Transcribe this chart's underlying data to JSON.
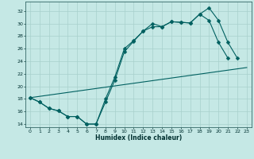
{
  "xlabel": "Humidex (Indice chaleur)",
  "bg_color": "#c5e8e5",
  "line_color": "#006060",
  "grid_color": "#a8d0cc",
  "xlim": [
    -0.5,
    23.5
  ],
  "ylim": [
    13.5,
    33.5
  ],
  "xticks": [
    0,
    1,
    2,
    3,
    4,
    5,
    6,
    7,
    8,
    9,
    10,
    11,
    12,
    13,
    14,
    15,
    16,
    17,
    18,
    19,
    20,
    21,
    22,
    23
  ],
  "yticks": [
    14,
    16,
    18,
    20,
    22,
    24,
    26,
    28,
    30,
    32
  ],
  "line1_x": [
    0,
    1,
    2,
    3,
    4,
    5,
    6,
    7,
    8,
    9,
    10,
    11,
    12,
    13,
    14,
    15,
    16,
    17,
    18,
    19,
    20,
    21
  ],
  "line1_y": [
    18.2,
    17.5,
    16.5,
    16.1,
    15.2,
    15.2,
    14.0,
    14.0,
    17.5,
    21.0,
    25.5,
    27.2,
    28.8,
    30.0,
    29.5,
    30.3,
    30.2,
    30.1,
    31.5,
    30.5,
    27.0,
    24.5
  ],
  "line2_x": [
    0,
    1,
    2,
    3,
    4,
    5,
    6,
    7,
    8,
    9,
    10,
    11,
    12,
    13,
    14,
    15,
    16,
    17,
    18,
    19,
    20,
    21,
    22
  ],
  "line2_y": [
    18.2,
    17.5,
    16.5,
    16.1,
    15.2,
    15.2,
    14.0,
    14.0,
    18.0,
    21.5,
    26.0,
    27.3,
    28.8,
    29.5,
    29.5,
    30.3,
    30.2,
    30.1,
    31.5,
    32.5,
    30.5,
    27.0,
    24.5
  ],
  "line3_x": [
    0,
    23
  ],
  "line3_y": [
    18.2,
    23.0
  ],
  "markersize": 2.5
}
